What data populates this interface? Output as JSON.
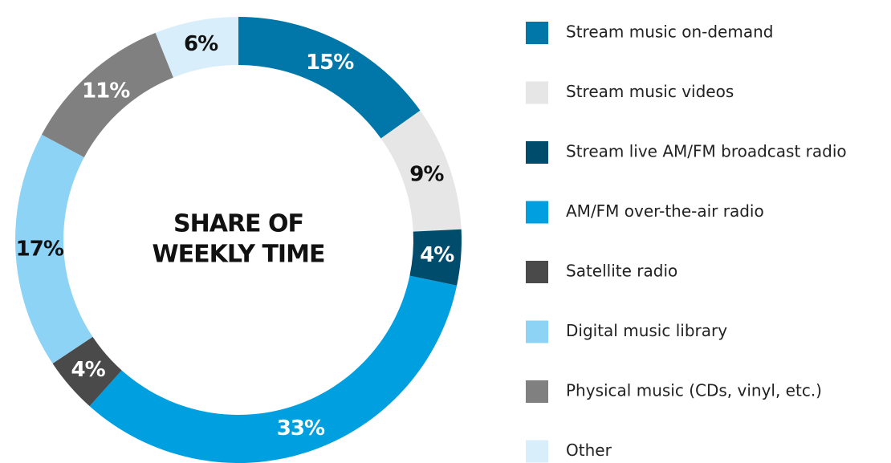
{
  "chart_data": {
    "type": "donut",
    "center_text": [
      "SHARE OF",
      "WEEKLY TIME"
    ],
    "categories": [
      "Stream music on-demand",
      "Stream music videos",
      "Stream live AM/FM broadcast radio",
      "AM/FM over-the-air radio",
      "Satellite radio",
      "Digital music library",
      "Physical music (CDs, vinyl, etc.)",
      "Other"
    ],
    "values": [
      15,
      9,
      4,
      33,
      4,
      17,
      11,
      6
    ],
    "value_labels": [
      "15%",
      "9%",
      "4%",
      "33%",
      "4%",
      "17%",
      "11%",
      "6%"
    ],
    "colors": [
      "#0077a8",
      "#e6e6e6",
      "#004c6c",
      "#00a0e0",
      "#4a4a4a",
      "#8dd3f5",
      "#808080",
      "#d8effb"
    ],
    "legend": "right"
  }
}
